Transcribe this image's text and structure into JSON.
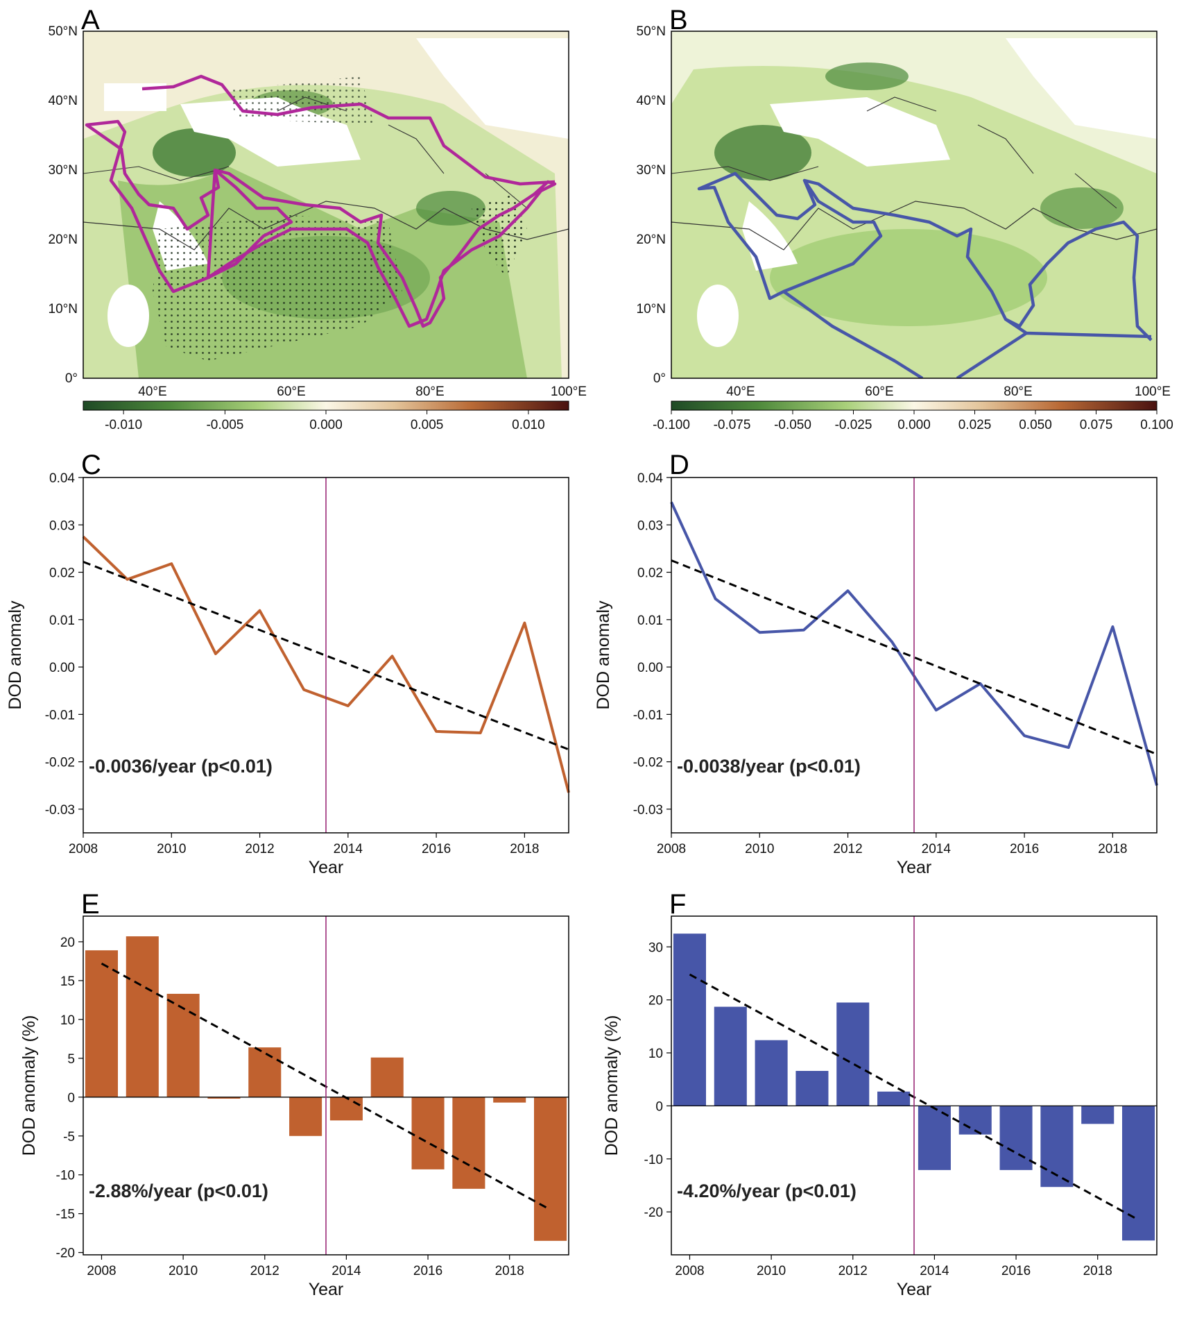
{
  "colors": {
    "orange": "#c0612f",
    "blue": "#4756a8",
    "magenta": "#b0279a",
    "event_line": "#9a2a78",
    "trend": "#000000"
  },
  "panels": {
    "A": "A",
    "B": "B",
    "C": "C",
    "D": "D",
    "E": "E",
    "F": "F"
  },
  "maps": {
    "lat_ticks": [
      "0°",
      "10°N",
      "20°N",
      "30°N",
      "40°N",
      "50°N"
    ],
    "lon_ticks": [
      "40°E",
      "60°E",
      "80°E",
      "100°E"
    ],
    "colorbar_A": [
      "-0.010",
      "-0.005",
      "0.000",
      "0.005",
      "0.010"
    ],
    "colorbar_B": [
      "-0.100",
      "-0.075",
      "-0.050",
      "-0.025",
      "0.000",
      "0.025",
      "0.050",
      "0.075",
      "0.100"
    ],
    "outline_A_color": "magenta",
    "outline_B_color": "blue"
  },
  "chart_data": [
    {
      "panel": "C",
      "type": "line",
      "x": [
        2008,
        2009,
        2010,
        2011,
        2012,
        2013,
        2014,
        2015,
        2016,
        2017,
        2018,
        2019
      ],
      "values": [
        0.0275,
        0.0185,
        0.0218,
        0.0028,
        0.0119,
        -0.0048,
        -0.0082,
        0.0023,
        -0.0136,
        -0.0139,
        0.0093,
        -0.0265
      ],
      "trend": [
        0.0222,
        -0.0174
      ],
      "event_x": 2013.5,
      "xlabel": "Year",
      "ylabel": "DOD anomaly",
      "xlim": [
        2008,
        2019
      ],
      "ylim": [
        -0.035,
        0.04
      ],
      "xticks": [
        2008,
        2010,
        2012,
        2014,
        2016,
        2018
      ],
      "yticks": [
        "-0.03",
        "-0.02",
        "-0.01",
        "0.00",
        "0.01",
        "0.02",
        "0.03",
        "0.04"
      ],
      "annotation": "-0.0036/year (p<0.01)",
      "color": "orange"
    },
    {
      "panel": "D",
      "type": "line",
      "x": [
        2008,
        2009,
        2010,
        2011,
        2012,
        2013,
        2014,
        2015,
        2016,
        2017,
        2018,
        2019
      ],
      "values": [
        0.0348,
        0.0144,
        0.0073,
        0.0078,
        0.0161,
        0.0053,
        -0.0091,
        -0.0035,
        -0.0145,
        -0.017,
        0.0085,
        -0.025
      ],
      "trend": [
        0.0225,
        -0.0184
      ],
      "event_x": 2013.5,
      "xlabel": "Year",
      "ylabel": "DOD anomaly",
      "xlim": [
        2008,
        2019
      ],
      "ylim": [
        -0.035,
        0.04
      ],
      "xticks": [
        2008,
        2010,
        2012,
        2014,
        2016,
        2018
      ],
      "yticks": [
        "-0.03",
        "-0.02",
        "-0.01",
        "0.00",
        "0.01",
        "0.02",
        "0.03",
        "0.04"
      ],
      "annotation": "-0.0038/year (p<0.01)",
      "color": "blue"
    },
    {
      "panel": "E",
      "type": "bar",
      "x": [
        2008,
        2009,
        2010,
        2011,
        2012,
        2013,
        2014,
        2015,
        2016,
        2017,
        2018,
        2019
      ],
      "values": [
        18.9,
        20.7,
        13.3,
        -0.2,
        6.4,
        -5.0,
        -3.0,
        5.1,
        -9.3,
        -11.8,
        -0.7,
        -18.5
      ],
      "trend": [
        17.2,
        -14.5
      ],
      "event_x": 2013.5,
      "xlabel": "Year",
      "ylabel": "DOD anomaly (%)",
      "xlim": [
        2007.55,
        2019.45
      ],
      "ylim": [
        -20.3,
        23.3
      ],
      "xticks": [
        2008,
        2010,
        2012,
        2014,
        2016,
        2018
      ],
      "yticks": [
        "-20",
        "-15",
        "-10",
        "-5",
        "0",
        "5",
        "10",
        "15",
        "20"
      ],
      "annotation": "-2.88%/year (p<0.01)",
      "color": "orange"
    },
    {
      "panel": "F",
      "type": "bar",
      "x": [
        2008,
        2009,
        2010,
        2011,
        2012,
        2013,
        2014,
        2015,
        2016,
        2017,
        2018,
        2019
      ],
      "values": [
        32.5,
        18.7,
        12.4,
        6.6,
        19.5,
        2.7,
        -12.1,
        -5.4,
        -12.1,
        -15.3,
        -3.4,
        -25.4
      ],
      "trend": [
        24.8,
        -21.5
      ],
      "event_x": 2013.5,
      "xlabel": "Year",
      "ylabel": "DOD anomaly (%)",
      "xlim": [
        2007.55,
        2019.45
      ],
      "ylim": [
        -28.1,
        35.8
      ],
      "xticks": [
        2008,
        2010,
        2012,
        2014,
        2016,
        2018
      ],
      "yticks": [
        "-20",
        "-10",
        "0",
        "10",
        "20",
        "30"
      ],
      "annotation": "-4.20%/year (p<0.01)",
      "color": "blue"
    }
  ]
}
